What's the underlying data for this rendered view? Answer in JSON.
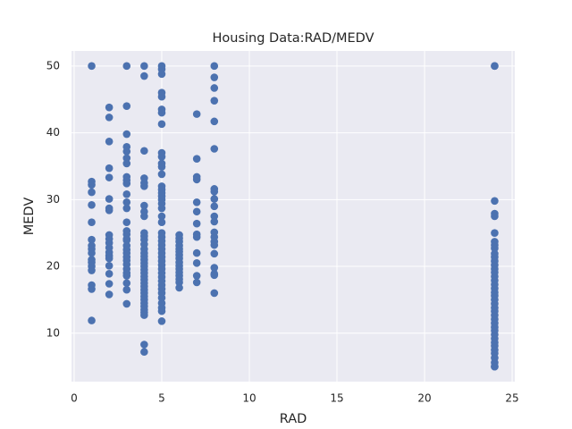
{
  "chart_data": {
    "type": "scatter",
    "title": "Housing Data:RAD/MEDV",
    "xlabel": "RAD",
    "ylabel": "MEDV",
    "color": "#4c72b0",
    "grid": true,
    "xlim": [
      -0.15,
      25.15
    ],
    "ylim": [
      2.75,
      52.25
    ],
    "xticks": [
      0,
      5,
      10,
      15,
      20,
      25
    ],
    "yticks": [
      10,
      20,
      30,
      40,
      50
    ],
    "x": [
      1,
      1,
      1,
      1,
      1,
      1,
      1,
      1,
      1,
      1,
      1,
      1,
      1,
      1,
      1,
      1,
      1,
      2,
      2,
      2,
      2,
      2,
      2,
      2,
      2,
      2,
      2,
      2,
      2,
      2,
      2,
      2,
      2,
      2,
      2,
      2,
      3,
      3,
      3,
      3,
      3,
      3,
      3,
      3,
      3,
      3,
      3,
      3,
      3,
      3,
      3,
      3,
      3,
      3,
      3,
      3,
      3,
      3,
      3,
      3,
      3,
      3,
      3,
      3,
      3,
      3,
      4,
      4,
      4,
      4,
      4,
      4,
      4,
      4,
      4,
      4,
      4,
      4,
      4,
      4,
      4,
      4,
      4,
      4,
      4,
      4,
      4,
      4,
      4,
      4,
      4,
      4,
      4,
      4,
      4,
      4,
      4,
      4,
      4,
      4,
      4,
      4,
      5,
      5,
      5,
      5,
      5,
      5,
      5,
      5,
      5,
      5,
      5,
      5,
      5,
      5,
      5,
      5,
      5,
      5,
      5,
      5,
      5,
      5,
      5,
      5,
      5,
      5,
      5,
      5,
      5,
      5,
      5,
      5,
      5,
      5,
      5,
      5,
      5,
      5,
      5,
      5,
      5,
      5,
      5,
      6,
      6,
      6,
      6,
      6,
      6,
      6,
      6,
      6,
      6,
      6,
      6,
      6,
      6,
      6,
      6,
      7,
      7,
      7,
      7,
      7,
      7,
      7,
      7,
      7,
      7,
      7,
      7,
      7,
      8,
      8,
      8,
      8,
      8,
      8,
      8,
      8,
      8,
      8,
      8,
      8,
      8,
      8,
      8,
      8,
      8,
      8,
      8,
      8,
      8,
      24,
      24,
      24,
      24,
      24,
      24,
      24,
      24,
      24,
      24,
      24,
      24,
      24,
      24,
      24,
      24,
      24,
      24,
      24,
      24,
      24,
      24,
      24,
      24,
      24,
      24,
      24,
      24,
      24,
      24,
      24,
      24,
      24,
      24,
      24,
      24,
      24,
      24,
      24,
      24
    ],
    "values": [
      50,
      32.7,
      32.2,
      31.1,
      29.2,
      26.6,
      24,
      23.1,
      22.6,
      22,
      21,
      20.6,
      20,
      19.4,
      17.2,
      16.6,
      11.9,
      43.8,
      42.3,
      38.7,
      34.7,
      33.3,
      30.1,
      28.7,
      28.4,
      24.7,
      24.1,
      23.5,
      22.8,
      22.1,
      21.6,
      21.2,
      20.1,
      18.9,
      17.4,
      15.8,
      50,
      44,
      39.8,
      37.9,
      37.2,
      36.2,
      35.4,
      33.4,
      32.9,
      32.4,
      30.8,
      29.6,
      28.7,
      26.6,
      25.3,
      24.8,
      24.1,
      23.9,
      23.1,
      22.5,
      22,
      21.4,
      20.9,
      20.3,
      19.6,
      19,
      18.6,
      17.5,
      16.5,
      14.4,
      50,
      48.5,
      37.3,
      33.2,
      32.5,
      32,
      29.1,
      28.2,
      27.5,
      25,
      24.5,
      24,
      23.3,
      22.6,
      22,
      21.5,
      21,
      20.5,
      20,
      19.5,
      19,
      18.5,
      18,
      17.5,
      17,
      16.5,
      16,
      15.5,
      15,
      14.5,
      14,
      13.5,
      13.1,
      12.7,
      8.3,
      7.2,
      50,
      49.5,
      48.8,
      46,
      45.4,
      43.5,
      43,
      41.3,
      37,
      36.4,
      35.4,
      34.9,
      33.8,
      32,
      31.5,
      31,
      30.5,
      30,
      29.4,
      28.7,
      27.5,
      26.6,
      25,
      24.4,
      23.8,
      23.2,
      22.6,
      22,
      21.4,
      20.8,
      20.2,
      19.6,
      19,
      18.4,
      17.8,
      17.2,
      16.6,
      16,
      15.3,
      14.5,
      13.8,
      13.3,
      11.8,
      24.7,
      24.2,
      23.7,
      23.1,
      22.6,
      22.2,
      21.7,
      21.2,
      20.6,
      20.1,
      19.6,
      19.1,
      18.6,
      18.1,
      17.6,
      16.8,
      42.8,
      36.1,
      33.4,
      33,
      29.6,
      28.2,
      26.4,
      24.8,
      24.4,
      22,
      20.5,
      18.6,
      17.6,
      50,
      48.3,
      46.7,
      44.8,
      41.7,
      37.6,
      31.6,
      31.2,
      30.1,
      29,
      27.5,
      26.7,
      25.1,
      24.4,
      23.7,
      23.2,
      21.9,
      19.8,
      18.9,
      18.7,
      16,
      50,
      50,
      29.8,
      27.9,
      27.5,
      25,
      23.7,
      23.2,
      22.7,
      21.9,
      21.4,
      20.8,
      20.2,
      19.6,
      19.1,
      18.5,
      17.9,
      17.3,
      16.7,
      16.1,
      15.6,
      15,
      14.4,
      13.8,
      13.3,
      12.7,
      12.1,
      11.5,
      10.9,
      10.4,
      9.8,
      9.2,
      8.6,
      8.1,
      7.5,
      7,
      6.3,
      5.6,
      5,
      5
    ]
  }
}
